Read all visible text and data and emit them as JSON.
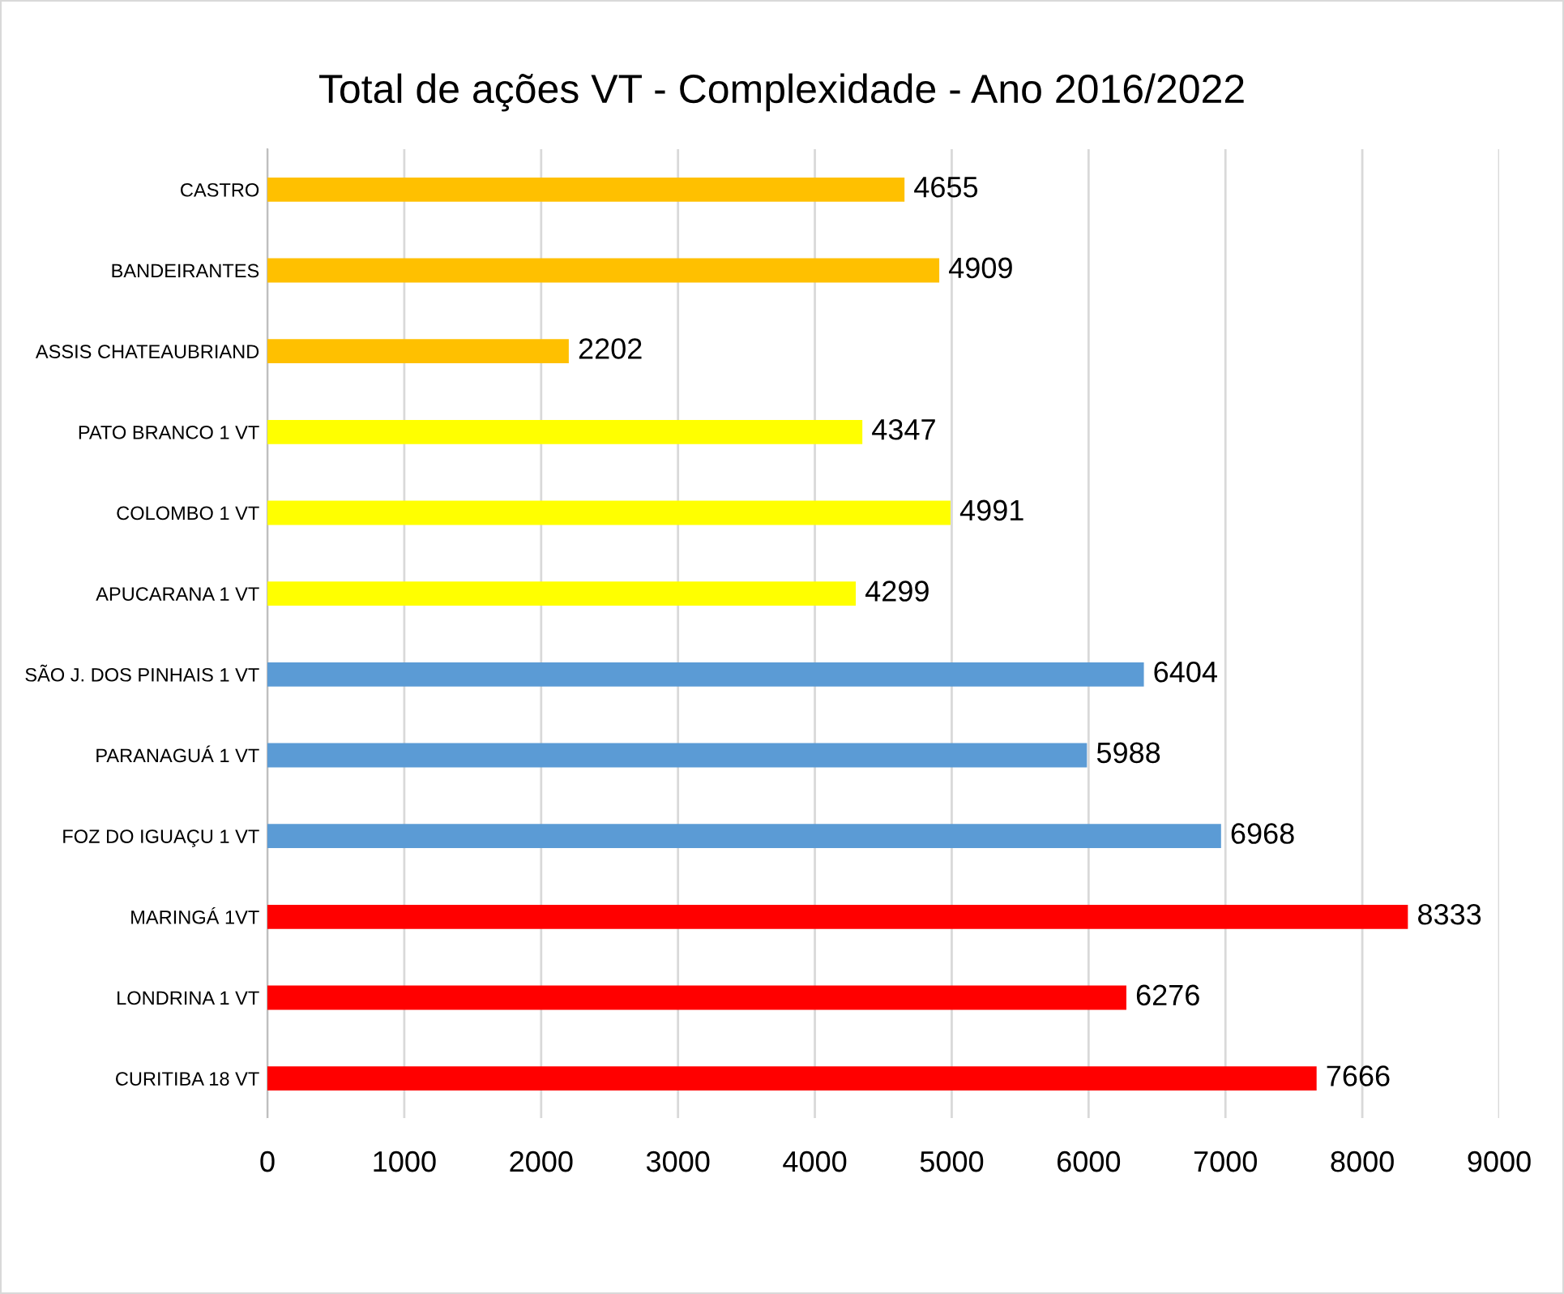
{
  "chart_data": {
    "type": "bar",
    "orientation": "horizontal",
    "title": "Total de ações VT - Complexidade - Ano 2016/2022",
    "categories": [
      "CASTRO",
      "BANDEIRANTES",
      "ASSIS CHATEAUBRIAND",
      "PATO BRANCO 1 VT",
      "COLOMBO 1 VT",
      "APUCARANA 1 VT",
      "SÃO J. DOS PINHAIS 1 VT",
      "PARANAGUÁ 1 VT",
      "FOZ DO IGUAÇU 1 VT",
      "MARINGÁ 1VT",
      "LONDRINA 1 VT",
      "CURITIBA 18 VT"
    ],
    "values": [
      4655,
      4909,
      2202,
      4347,
      4991,
      4299,
      6404,
      5988,
      6968,
      8333,
      6276,
      7666
    ],
    "colors": [
      "#ffc000",
      "#ffc000",
      "#ffc000",
      "#ffff00",
      "#ffff00",
      "#ffff00",
      "#5b9bd5",
      "#5b9bd5",
      "#5b9bd5",
      "#ff0000",
      "#ff0000",
      "#ff0000"
    ],
    "xlim": [
      0,
      9000
    ],
    "xticks": [
      0,
      1000,
      2000,
      3000,
      4000,
      5000,
      6000,
      7000,
      8000,
      9000
    ],
    "grid": "x",
    "data_labels": true
  }
}
